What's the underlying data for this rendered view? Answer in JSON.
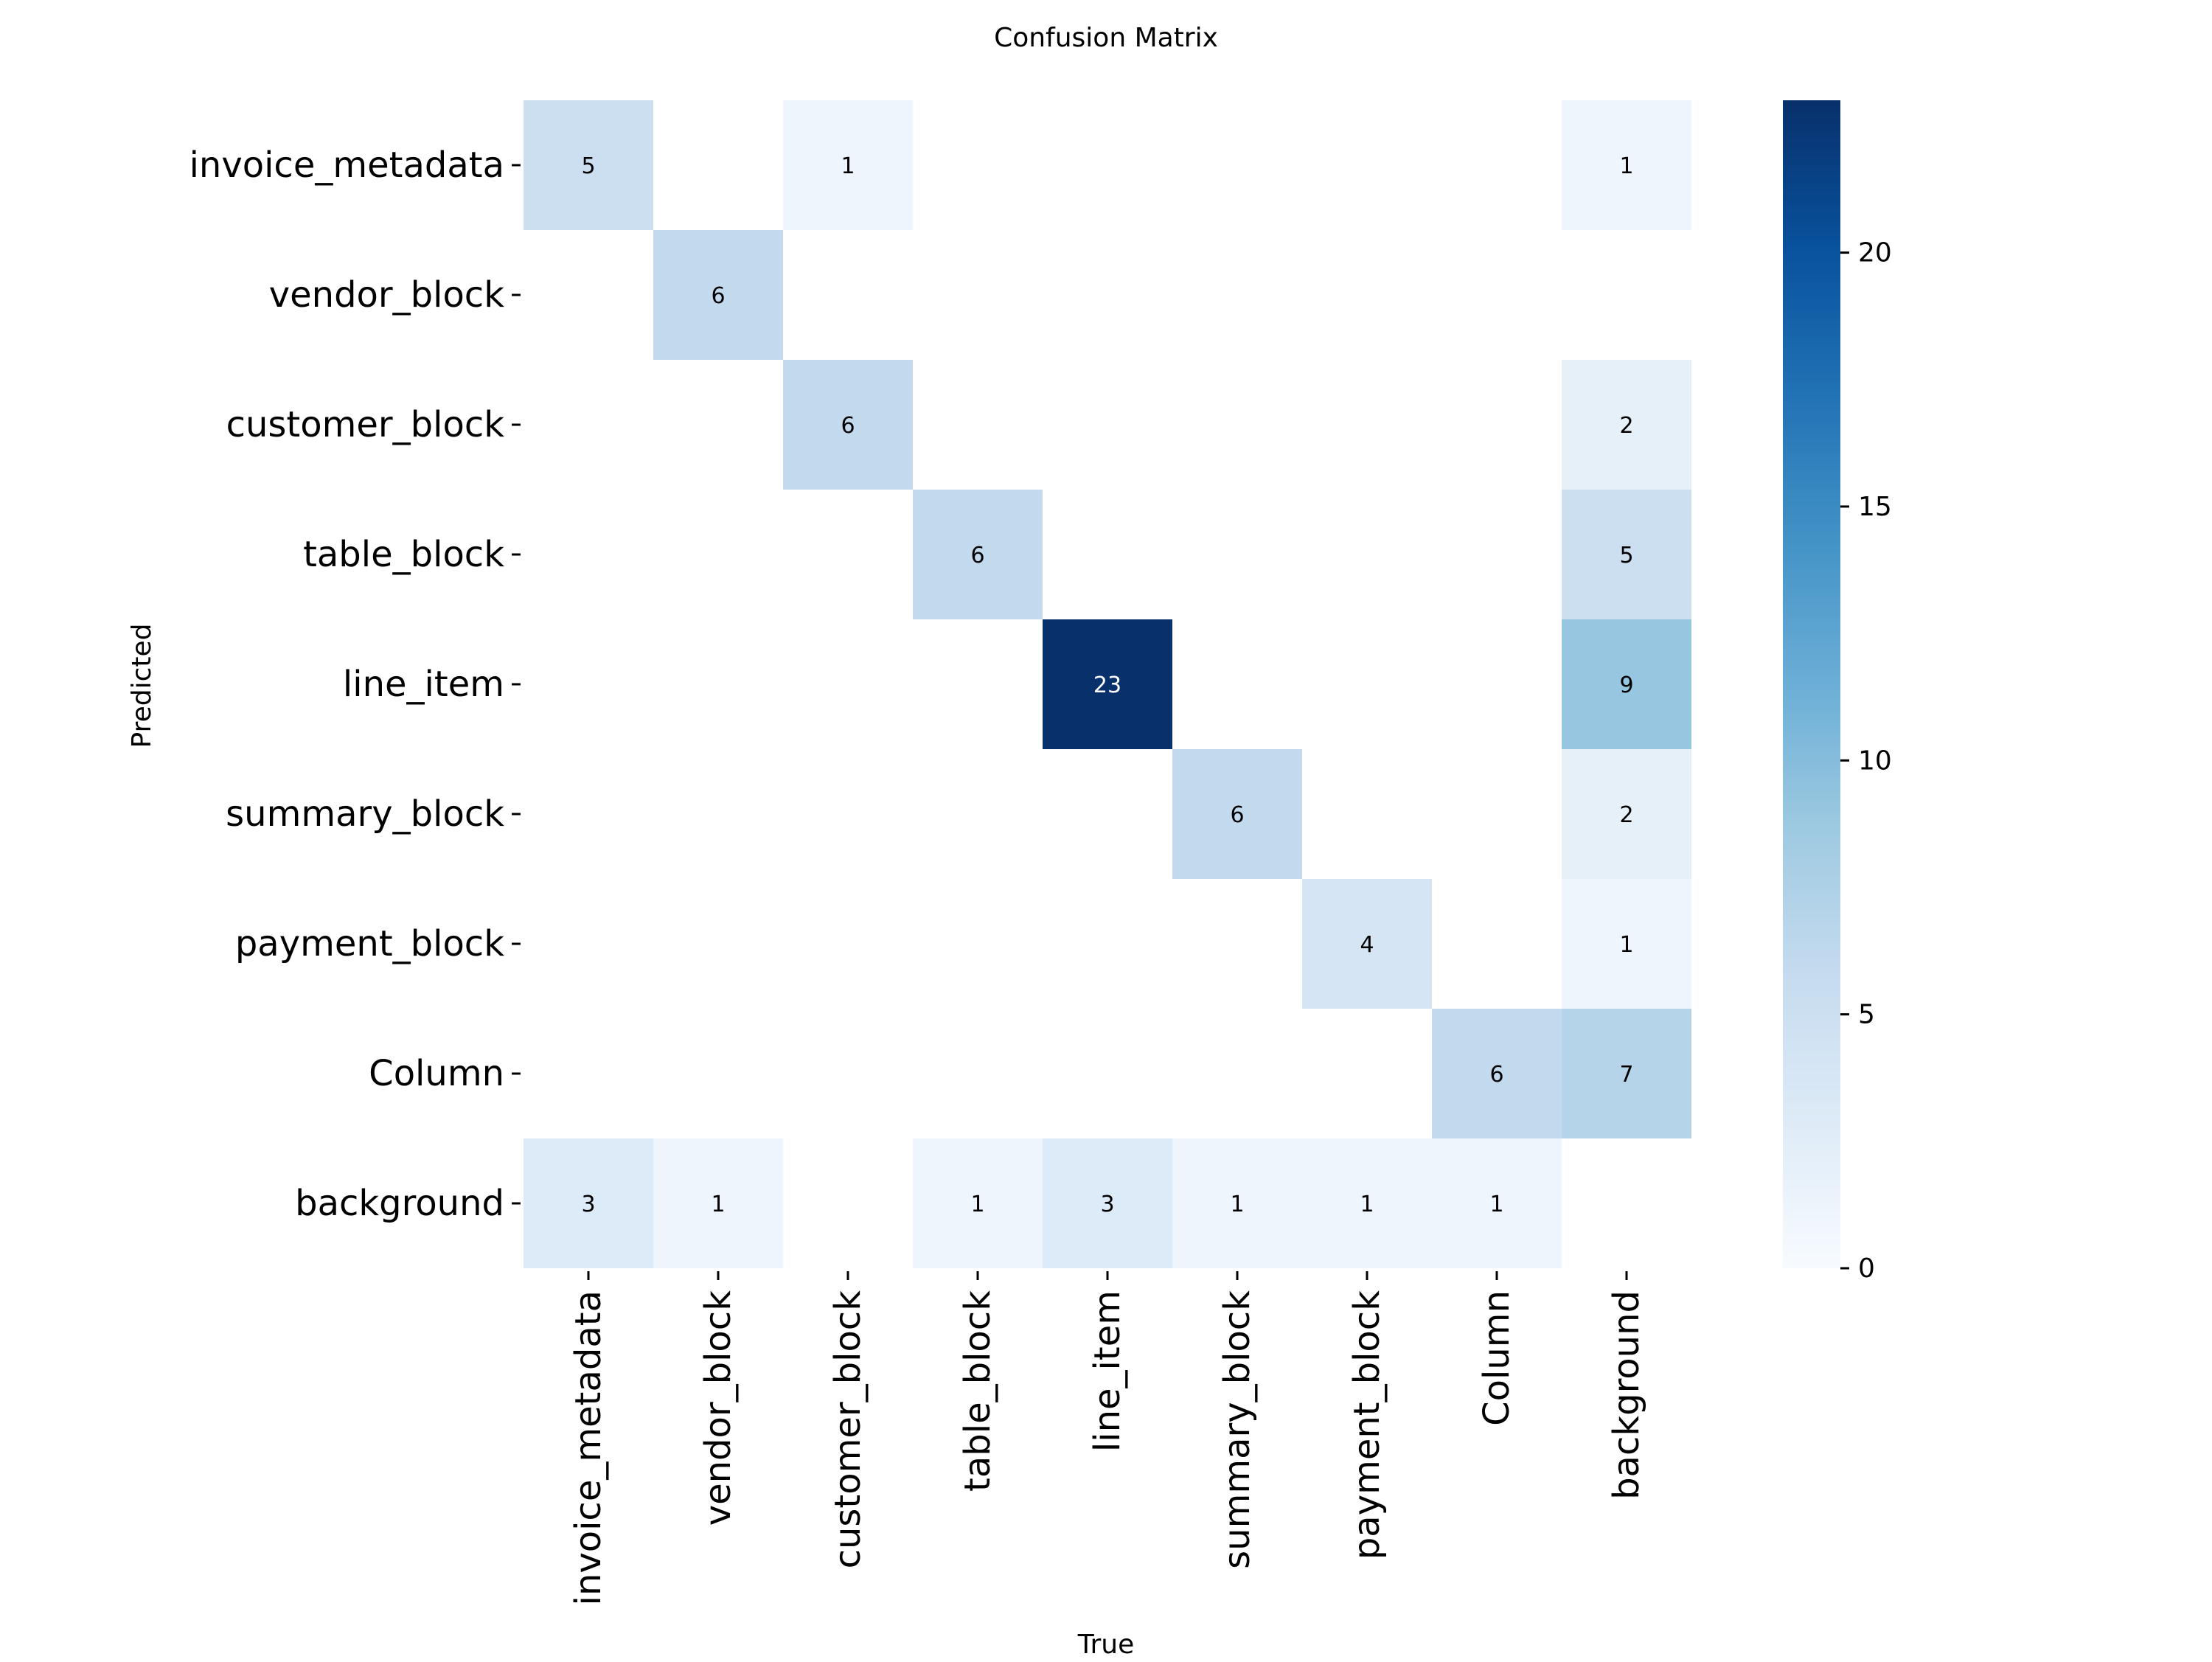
{
  "chart_data": {
    "type": "heatmap",
    "title": "Confusion Matrix",
    "xlabel": "True",
    "ylabel": "Predicted",
    "row_labels": [
      "invoice_metadata",
      "vendor_block",
      "customer_block",
      "table_block",
      "line_item",
      "summary_block",
      "payment_block",
      "Column",
      "background"
    ],
    "col_labels": [
      "invoice_metadata",
      "vendor_block",
      "customer_block",
      "table_block",
      "line_item",
      "summary_block",
      "payment_block",
      "Column",
      "background"
    ],
    "values": [
      [
        5,
        0,
        1,
        0,
        0,
        0,
        0,
        0,
        1
      ],
      [
        0,
        6,
        0,
        0,
        0,
        0,
        0,
        0,
        0
      ],
      [
        0,
        0,
        6,
        0,
        0,
        0,
        0,
        0,
        2
      ],
      [
        0,
        0,
        0,
        6,
        0,
        0,
        0,
        0,
        5
      ],
      [
        0,
        0,
        0,
        0,
        23,
        0,
        0,
        0,
        9
      ],
      [
        0,
        0,
        0,
        0,
        0,
        6,
        0,
        0,
        2
      ],
      [
        0,
        0,
        0,
        0,
        0,
        0,
        4,
        0,
        1
      ],
      [
        0,
        0,
        0,
        0,
        0,
        0,
        0,
        6,
        7
      ],
      [
        3,
        1,
        0,
        1,
        3,
        1,
        1,
        1,
        0
      ]
    ],
    "zero_cells_blank": true,
    "colormap": "Blues",
    "colorbar": {
      "range": [
        0,
        23
      ],
      "ticks": [
        0,
        5,
        10,
        15,
        20
      ]
    },
    "grid": false
  },
  "colors": {
    "annotation_dark": "#000000",
    "annotation_light": "#ffffff",
    "axis": "#000000"
  }
}
